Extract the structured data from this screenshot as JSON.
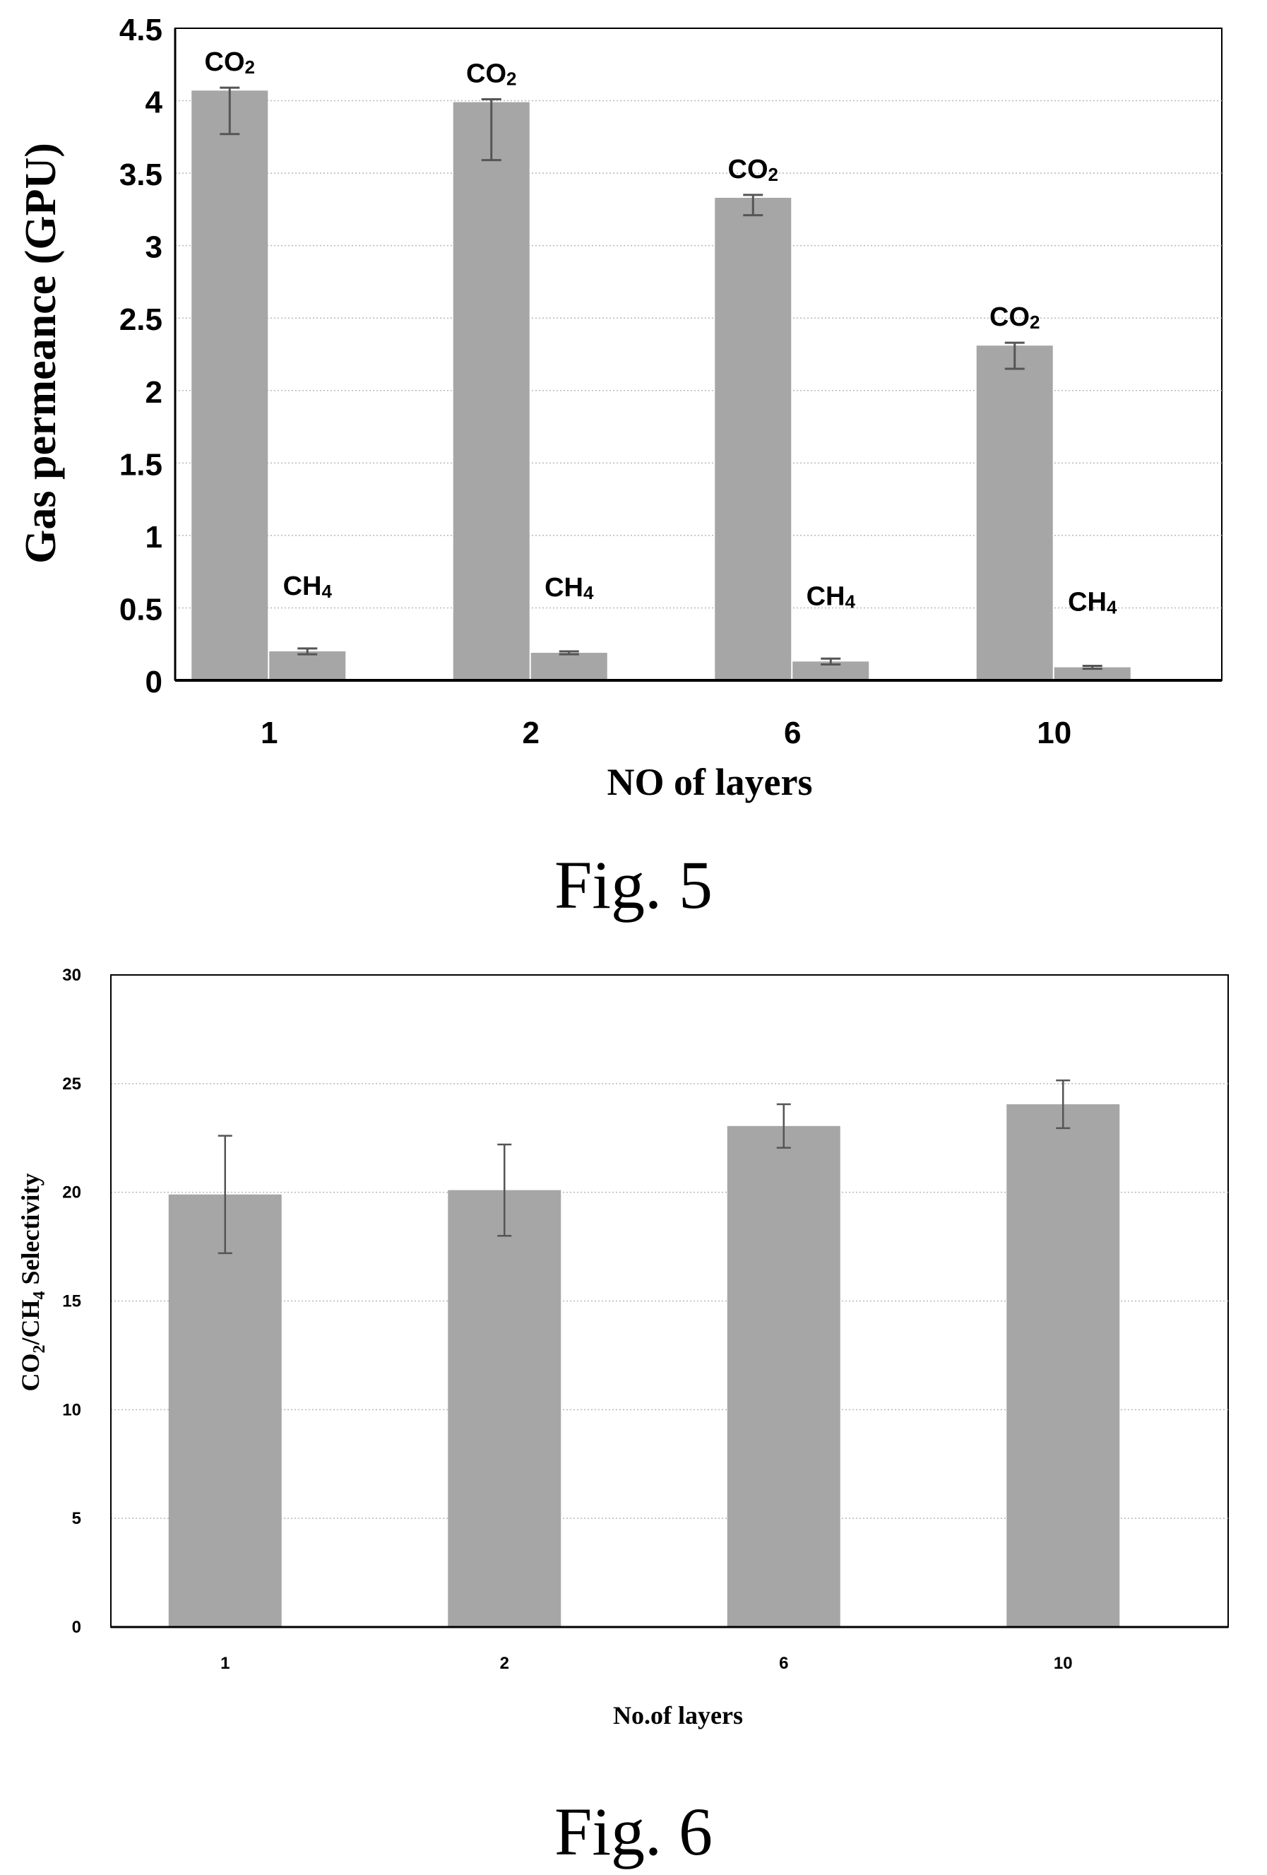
{
  "chart_data": [
    {
      "type": "bar",
      "categories": [
        "1",
        "2",
        "6",
        "10"
      ],
      "series": [
        {
          "name": "CO₂",
          "values": [
            4.07,
            3.99,
            3.33,
            2.31
          ],
          "errors": [
            0.3,
            0.4,
            0.12,
            0.16
          ]
        },
        {
          "name": "CH₄",
          "values": [
            0.2,
            0.19,
            0.13,
            0.09
          ],
          "errors": [
            0.02,
            0.01,
            0.02,
            0.01
          ]
        }
      ],
      "bar_labels": {
        "co2_main": "CO",
        "co2_sub": "2",
        "ch4_main": "CH",
        "ch4_sub": "4"
      },
      "xlabel": "NO of layers",
      "ylabel": "Gas permeance (GPU)",
      "ylim": [
        0,
        4.5
      ],
      "yticks": [
        "0",
        "0.5",
        "1",
        "1.5",
        "2",
        "2.5",
        "3",
        "3.5",
        "4",
        "4.5"
      ],
      "grid": true,
      "bar_color": "#a6a6a6",
      "caption": "Fig. 5"
    },
    {
      "type": "bar",
      "categories": [
        "1",
        "2",
        "6",
        "10"
      ],
      "series": [
        {
          "values": [
            19.9,
            20.1,
            23.05,
            24.05
          ],
          "errors": [
            2.7,
            2.1,
            1.0,
            1.1
          ]
        }
      ],
      "xlabel": "No.of layers",
      "ylabel_parts": [
        "CO",
        "2",
        "/CH",
        "4",
        " Selectivity"
      ],
      "ylim": [
        0,
        30
      ],
      "yticks": [
        "0",
        "5",
        "10",
        "15",
        "20",
        "25",
        "30"
      ],
      "grid": true,
      "bar_color": "#a6a6a6",
      "caption": "Fig. 6"
    }
  ]
}
